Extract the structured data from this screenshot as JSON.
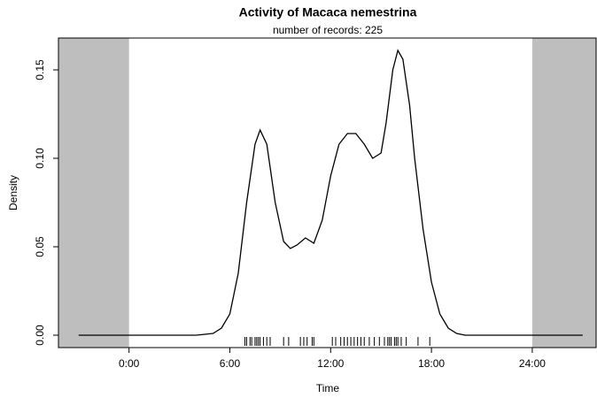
{
  "chart_data": {
    "type": "line",
    "title": "Activity of Macaca nemestrina",
    "subtitle": "number of records: 225",
    "xlabel": "Time",
    "ylabel": "Density",
    "xlim": [
      -4.2,
      27.8
    ],
    "ylim": [
      -0.007,
      0.168
    ],
    "xticks": [
      {
        "value": 0,
        "label": "0:00"
      },
      {
        "value": 6,
        "label": "6:00"
      },
      {
        "value": 12,
        "label": "12:00"
      },
      {
        "value": 18,
        "label": "18:00"
      },
      {
        "value": 24,
        "label": "24:00"
      }
    ],
    "yticks": [
      {
        "value": 0,
        "label": "0.00"
      },
      {
        "value": 0.05,
        "label": "0.05"
      },
      {
        "value": 0.1,
        "label": "0.10"
      },
      {
        "value": 0.15,
        "label": "0.15"
      }
    ],
    "shade": [
      [
        -4.2,
        0
      ],
      [
        24,
        27.8
      ]
    ],
    "shade_color": "#bebebe",
    "series": [
      {
        "name": "Density",
        "color": "#000000",
        "x": [
          -3,
          4,
          5,
          5.5,
          6,
          6.5,
          7,
          7.5,
          7.8,
          8.2,
          8.7,
          9.2,
          9.6,
          10,
          10.5,
          11,
          11.5,
          12,
          12.5,
          13,
          13.5,
          14,
          14.5,
          15,
          15.3,
          15.7,
          16,
          16.3,
          16.7,
          17,
          17.5,
          18,
          18.5,
          19,
          19.5,
          20,
          27
        ],
        "values": [
          0,
          0,
          0.001,
          0.004,
          0.012,
          0.035,
          0.075,
          0.108,
          0.116,
          0.108,
          0.075,
          0.053,
          0.049,
          0.051,
          0.055,
          0.052,
          0.065,
          0.09,
          0.108,
          0.114,
          0.114,
          0.108,
          0.1,
          0.103,
          0.12,
          0.15,
          0.161,
          0.156,
          0.13,
          0.1,
          0.06,
          0.03,
          0.012,
          0.004,
          0.001,
          0,
          0
        ]
      }
    ],
    "rug": [
      6.9,
      7.0,
      7.2,
      7.3,
      7.5,
      7.6,
      7.7,
      7.8,
      8.0,
      8.2,
      8.4,
      9.2,
      9.5,
      10.2,
      10.4,
      10.6,
      10.9,
      11.0,
      12.1,
      12.3,
      12.6,
      12.8,
      13.0,
      13.2,
      13.4,
      13.6,
      13.8,
      14.0,
      14.3,
      14.6,
      14.9,
      15.2,
      15.4,
      15.5,
      15.6,
      15.8,
      15.9,
      16.0,
      16.2,
      16.5,
      17.2,
      17.9
    ]
  }
}
